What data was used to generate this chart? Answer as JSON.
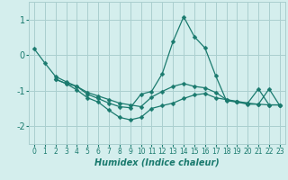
{
  "xlabel": "Humidex (Indice chaleur)",
  "background_color": "#d4eeed",
  "grid_color": "#aacfcf",
  "line_color": "#1a7a6e",
  "xlim": [
    -0.5,
    23.5
  ],
  "ylim": [
    -2.5,
    1.5
  ],
  "xticks": [
    0,
    1,
    2,
    3,
    4,
    5,
    6,
    7,
    8,
    9,
    10,
    11,
    12,
    13,
    14,
    15,
    16,
    17,
    18,
    19,
    20,
    21,
    22,
    23
  ],
  "yticks": [
    -2,
    -1,
    0,
    1
  ],
  "line1_x": [
    0,
    1,
    2,
    3,
    4,
    5,
    6,
    7,
    8,
    9,
    10,
    11,
    12,
    13,
    14,
    15,
    16,
    17,
    18,
    19,
    20,
    21,
    22,
    23
  ],
  "line1_y": [
    0.18,
    -0.22,
    -0.6,
    -0.75,
    -0.88,
    -1.1,
    -1.22,
    -1.35,
    -1.45,
    -1.48,
    -1.1,
    -1.02,
    -0.52,
    0.38,
    1.08,
    0.52,
    0.2,
    -0.58,
    -1.28,
    -1.32,
    -1.38,
    -1.38,
    -0.95,
    -1.42
  ],
  "line2_x": [
    2,
    3,
    4,
    5,
    6,
    7,
    8,
    9,
    10,
    11,
    12,
    13,
    14,
    15,
    16,
    17,
    18,
    19,
    20,
    21,
    22,
    23
  ],
  "line2_y": [
    -0.68,
    -0.8,
    -0.88,
    -1.05,
    -1.15,
    -1.25,
    -1.35,
    -1.4,
    -1.45,
    -1.18,
    -1.02,
    -0.88,
    -0.8,
    -0.88,
    -0.92,
    -1.05,
    -1.25,
    -1.32,
    -1.35,
    -1.38,
    -1.4,
    -1.4
  ],
  "line3_x": [
    2,
    3,
    4,
    5,
    6,
    7,
    8,
    9,
    10,
    11,
    12,
    13,
    14,
    15,
    16,
    17,
    18,
    19,
    20,
    21,
    22,
    23
  ],
  "line3_y": [
    -0.68,
    -0.8,
    -0.98,
    -1.2,
    -1.32,
    -1.55,
    -1.75,
    -1.82,
    -1.75,
    -1.5,
    -1.42,
    -1.35,
    -1.22,
    -1.12,
    -1.08,
    -1.2,
    -1.25,
    -1.3,
    -1.35,
    -0.95,
    -1.4,
    -1.4
  ]
}
